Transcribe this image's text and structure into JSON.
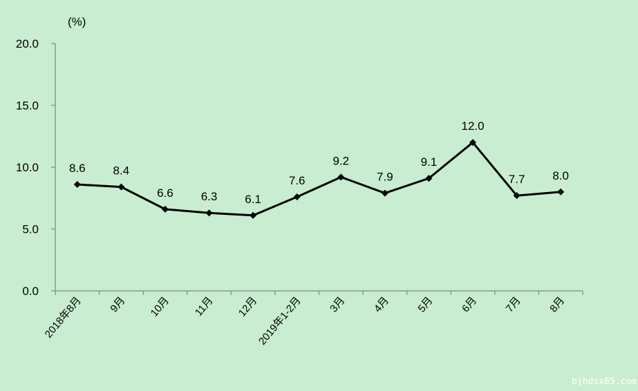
{
  "chart_data": {
    "type": "line",
    "title": "",
    "ylabel": "(%)",
    "xlabel": "",
    "ylim": [
      0,
      20
    ],
    "yticks": [
      "0.0",
      "5.0",
      "10.0",
      "15.0",
      "20.0"
    ],
    "categories": [
      "2018年8月",
      "9月",
      "10月",
      "11月",
      "12月",
      "2019年1-2月",
      "3月",
      "4月",
      "5月",
      "6月",
      "7月",
      "8月"
    ],
    "series": [
      {
        "name": "",
        "values": [
          8.6,
          8.4,
          6.6,
          6.3,
          6.1,
          7.6,
          9.2,
          7.9,
          9.1,
          12.0,
          7.7,
          8.0
        ],
        "labels": [
          "8.6",
          "8.4",
          "6.6",
          "6.3",
          "6.1",
          "7.6",
          "9.2",
          "7.9",
          "9.1",
          "12.0",
          "7.7",
          "8.0"
        ]
      }
    ],
    "grid": false,
    "legend": "none",
    "colors": {
      "line": "#000000",
      "axis": "#8c9a8e",
      "background": "#c8edd0"
    }
  },
  "watermark": "bjhdsx85.com"
}
